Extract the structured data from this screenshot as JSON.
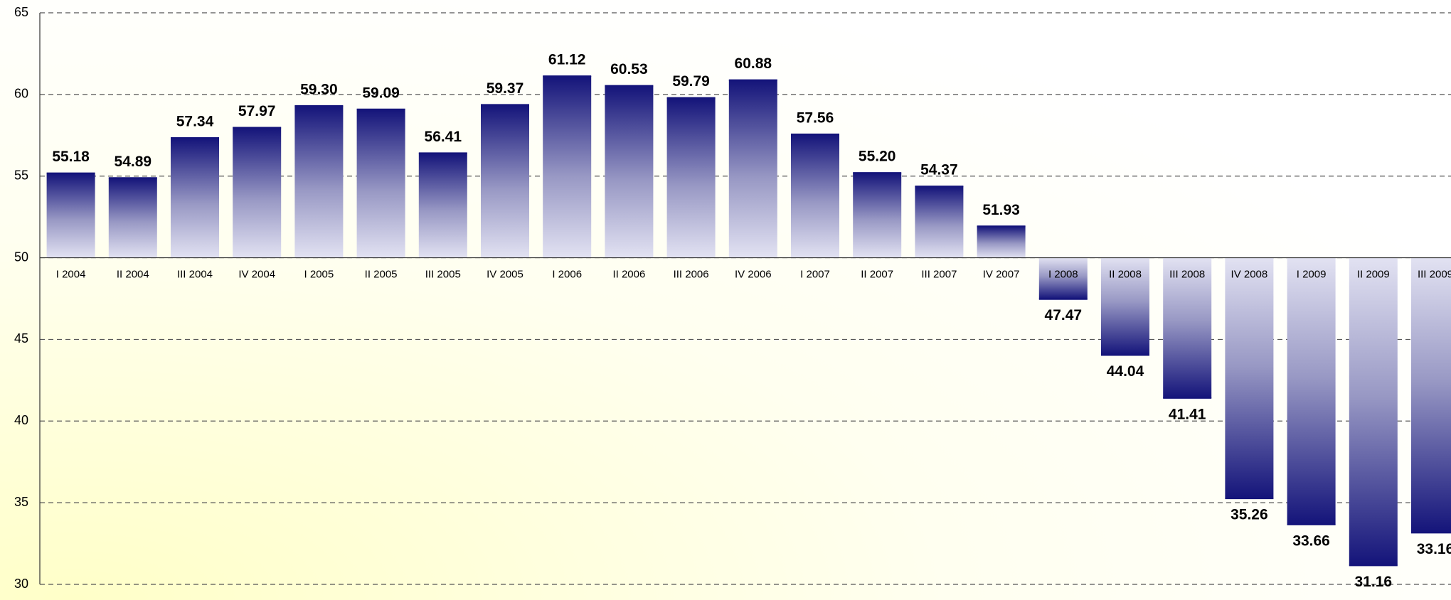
{
  "chart_data": {
    "type": "bar",
    "categories": [
      "I 2004",
      "II 2004",
      "III 2004",
      "IV 2004",
      "I 2005",
      "II 2005",
      "III 2005",
      "IV 2005",
      "I 2006",
      "II 2006",
      "III 2006",
      "IV 2006",
      "I 2007",
      "II 2007",
      "III 2007",
      "IV 2007",
      "I 2008",
      "II 2008",
      "III 2008",
      "IV 2008",
      "I 2009",
      "II 2009",
      "III 2009"
    ],
    "values": [
      55.18,
      54.89,
      57.34,
      57.97,
      59.3,
      59.09,
      56.41,
      59.37,
      61.12,
      60.53,
      59.79,
      60.88,
      57.56,
      55.2,
      54.37,
      51.93,
      47.47,
      44.04,
      41.41,
      35.26,
      33.66,
      31.16,
      33.16
    ],
    "value_labels": [
      "55.18",
      "54.89",
      "57.34",
      "57.97",
      "59.30",
      "59.09",
      "56.41",
      "59.37",
      "61.12",
      "60.53",
      "59.79",
      "60.88",
      "57.56",
      "55.20",
      "54.37",
      "51.93",
      "47.47",
      "44.04",
      "41.41",
      "35.26",
      "33.66",
      "31.16",
      "33.16"
    ],
    "color": "#14147a",
    "ylim": [
      30,
      65
    ],
    "yticks": [
      30,
      35,
      40,
      45,
      50,
      55,
      60,
      65
    ],
    "x_axis_crossing": 50,
    "grid": true
  }
}
